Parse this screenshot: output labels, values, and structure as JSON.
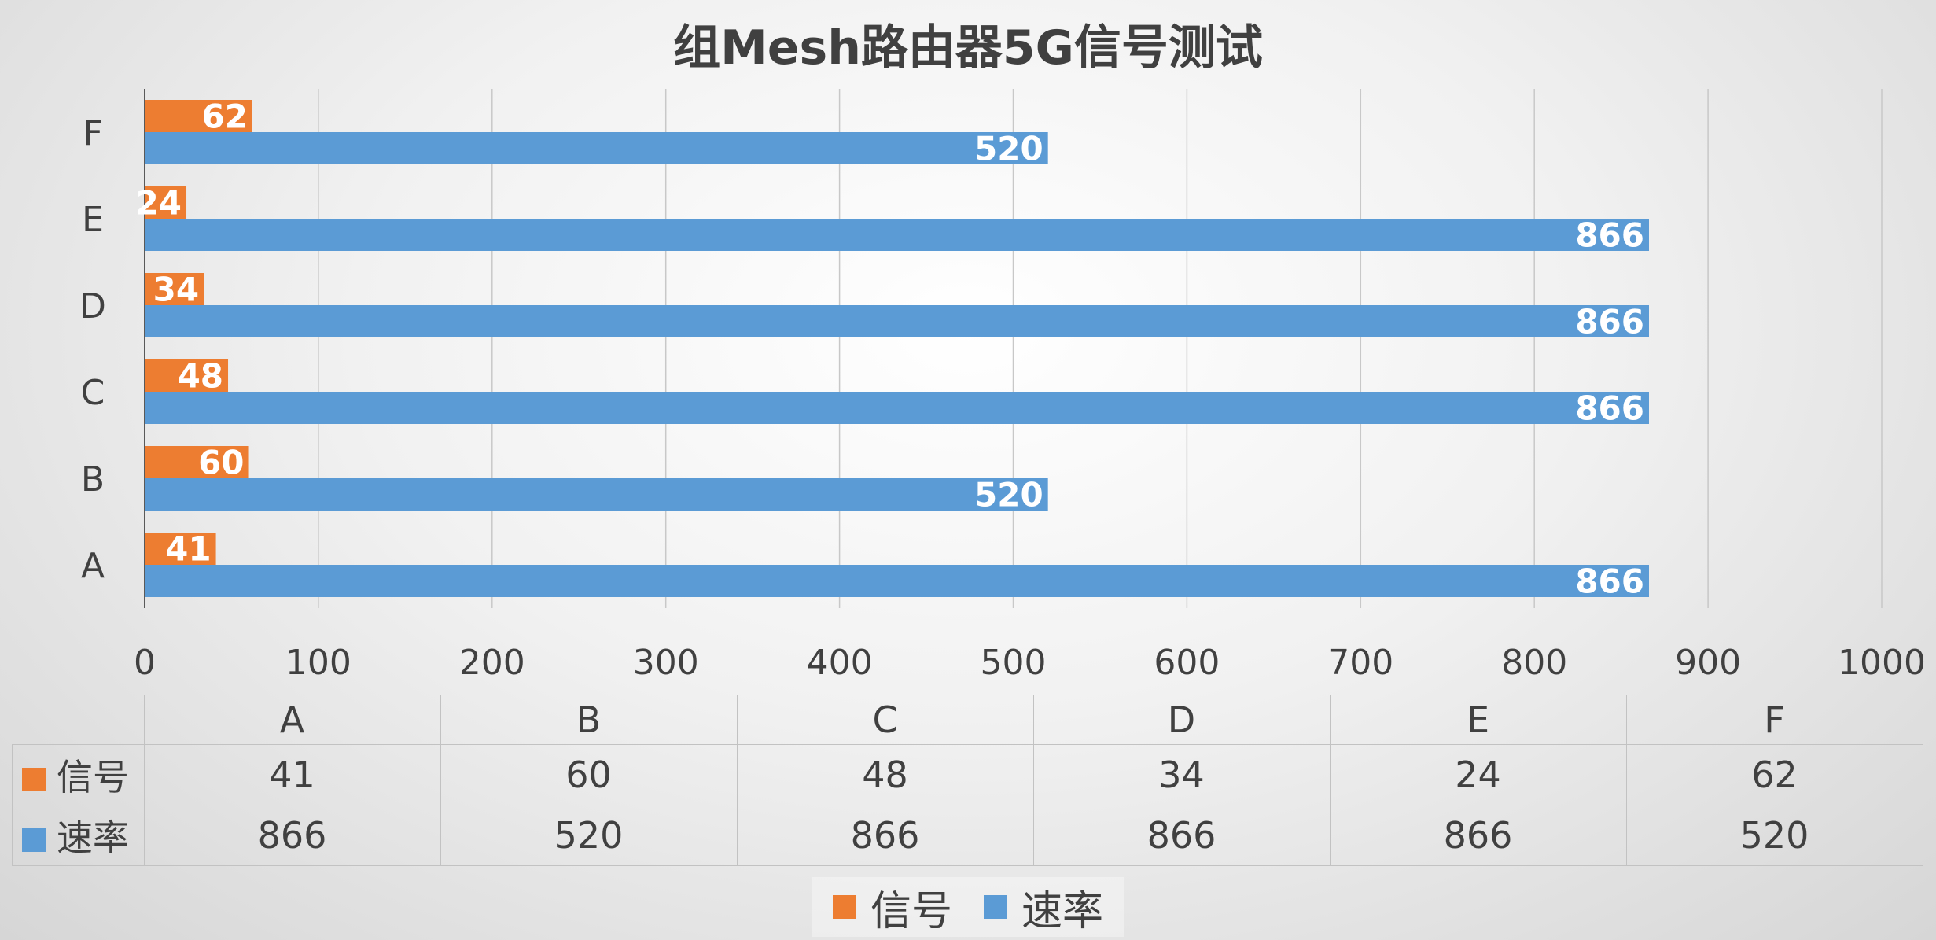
{
  "chart_data": {
    "type": "bar",
    "orientation": "horizontal",
    "title": "组Mesh路由器5G信号测试",
    "categories": [
      "A",
      "B",
      "C",
      "D",
      "E",
      "F"
    ],
    "series": [
      {
        "name": "信号",
        "values": [
          41,
          60,
          48,
          34,
          24,
          62
        ],
        "color": "#ed7d31"
      },
      {
        "name": "速率",
        "values": [
          866,
          520,
          866,
          866,
          866,
          520
        ],
        "color": "#5b9bd5"
      }
    ],
    "xlim": [
      0,
      1000
    ],
    "x_ticks": [
      0,
      100,
      200,
      300,
      400,
      500,
      600,
      700,
      800,
      900,
      1000
    ],
    "grid": true,
    "data_labels": true,
    "data_table": true,
    "legend": "bottom"
  }
}
